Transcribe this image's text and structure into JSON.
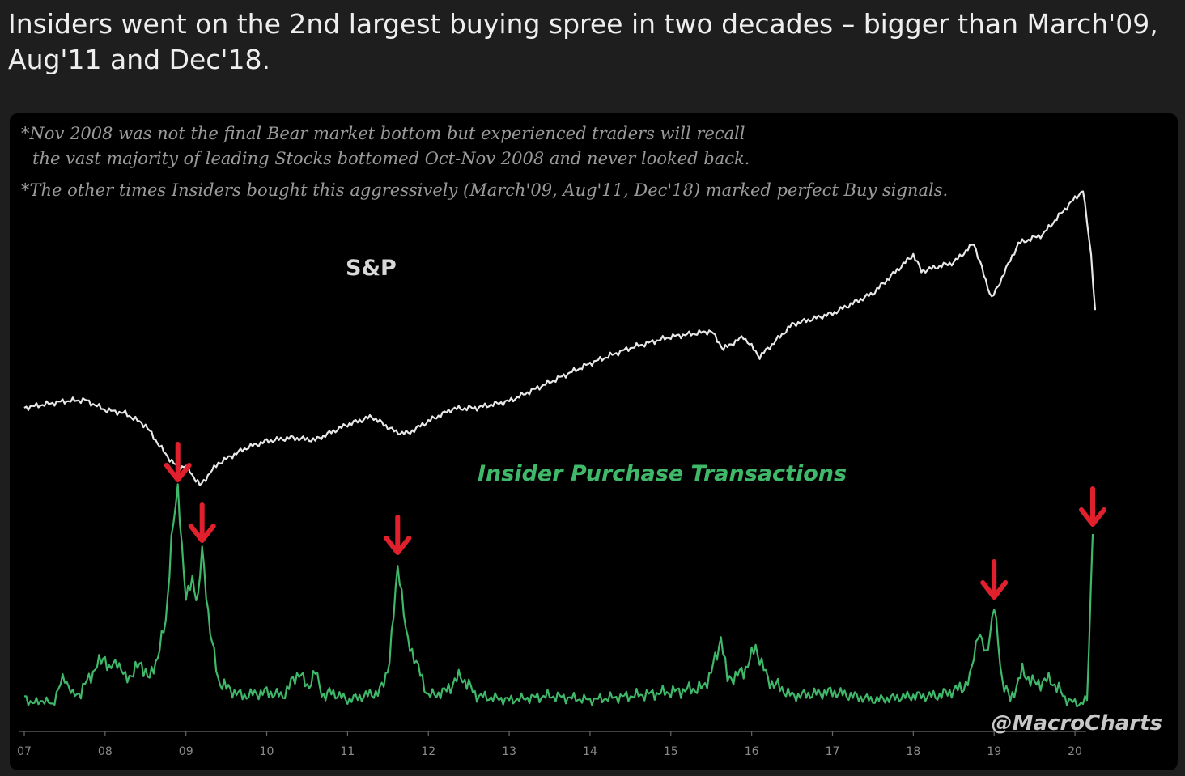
{
  "post": {
    "text": "Insiders went on the 2nd largest buying spree in two decades – bigger than March'09, Aug'11 and Dec'18."
  },
  "chart_data": {
    "type": "line",
    "notes": [
      "*Nov 2008 was not the final Bear market bottom but experienced traders will recall",
      "the vast majority of leading Stocks bottomed Oct-Nov 2008 and never looked back.",
      "*The other times Insiders bought this aggressively (March'09, Aug'11, Dec'18) marked perfect Buy signals."
    ],
    "watermark": "@MacroCharts",
    "x_ticks": [
      "07",
      "08",
      "09",
      "10",
      "11",
      "12",
      "13",
      "14",
      "15",
      "16",
      "17",
      "18",
      "19",
      "20"
    ],
    "xlim": [
      2007.0,
      2020.3
    ],
    "colors": {
      "sp": "#e8e8e8",
      "insider": "#3fb86a",
      "arrow": "#e0212d",
      "sp_label": "#d8d8d8",
      "insider_label": "#3fb86a"
    },
    "series": [
      {
        "name": "S&P",
        "x": [
          2007.0,
          2007.25,
          2007.5,
          2007.75,
          2008.0,
          2008.25,
          2008.5,
          2008.75,
          2008.9,
          2009.0,
          2009.17,
          2009.4,
          2009.75,
          2010.0,
          2010.3,
          2010.6,
          2011.0,
          2011.3,
          2011.6,
          2011.75,
          2012.0,
          2012.3,
          2012.6,
          2013.0,
          2013.5,
          2014.0,
          2014.5,
          2015.0,
          2015.5,
          2015.65,
          2015.9,
          2016.1,
          2016.5,
          2017.0,
          2017.5,
          2018.0,
          2018.1,
          2018.5,
          2018.75,
          2018.97,
          2019.3,
          2019.6,
          2019.9,
          2020.1,
          2020.2,
          2020.25
        ],
        "values": [
          1420,
          1450,
          1480,
          1490,
          1400,
          1370,
          1260,
          1000,
          880,
          900,
          720,
          920,
          1060,
          1120,
          1150,
          1130,
          1270,
          1340,
          1200,
          1190,
          1300,
          1410,
          1420,
          1480,
          1650,
          1820,
          1960,
          2060,
          2110,
          1950,
          2060,
          1880,
          2170,
          2270,
          2450,
          2800,
          2650,
          2730,
          2900,
          2400,
          2900,
          2980,
          3230,
          3380,
          2800,
          2300
        ]
      },
      {
        "name": "Insider Purchase Transactions",
        "x": [
          2007.0,
          2007.1,
          2007.2,
          2007.35,
          2007.5,
          2007.6,
          2007.7,
          2007.85,
          2008.0,
          2008.05,
          2008.15,
          2008.25,
          2008.35,
          2008.45,
          2008.55,
          2008.65,
          2008.75,
          2008.82,
          2008.9,
          2009.0,
          2009.08,
          2009.15,
          2009.2,
          2009.3,
          2009.4,
          2009.5,
          2009.7,
          2010.0,
          2010.2,
          2010.4,
          2010.5,
          2010.6,
          2010.68,
          2010.8,
          2011.0,
          2011.2,
          2011.4,
          2011.52,
          2011.62,
          2011.72,
          2011.85,
          2012.0,
          2012.2,
          2012.4,
          2012.6,
          2013.0,
          2013.5,
          2014.0,
          2014.5,
          2015.0,
          2015.4,
          2015.5,
          2015.62,
          2015.7,
          2015.9,
          2016.05,
          2016.2,
          2016.5,
          2017.0,
          2017.5,
          2018.0,
          2018.3,
          2018.6,
          2018.7,
          2018.8,
          2018.9,
          2019.0,
          2019.1,
          2019.2,
          2019.35,
          2019.5,
          2019.7,
          2019.9,
          2020.05,
          2020.15,
          2020.22
        ],
        "values": [
          4,
          2,
          3,
          2,
          9,
          4,
          5,
          10,
          14,
          10,
          13,
          8,
          10,
          12,
          8,
          14,
          22,
          42,
          55,
          28,
          32,
          28,
          40,
          20,
          8,
          6,
          4,
          5,
          4,
          10,
          6,
          10,
          4,
          5,
          3,
          4,
          5,
          12,
          37,
          20,
          12,
          4,
          5,
          9,
          4,
          3,
          4,
          3,
          4,
          5,
          6,
          10,
          18,
          8,
          10,
          16,
          8,
          4,
          5,
          3,
          4,
          4,
          6,
          8,
          20,
          14,
          26,
          8,
          3,
          10,
          7,
          8,
          3,
          2,
          3,
          44
        ]
      }
    ],
    "annotations": [
      {
        "type": "arrow",
        "series": "Insider Purchase Transactions",
        "x": 2008.9
      },
      {
        "type": "arrow",
        "series": "Insider Purchase Transactions",
        "x": 2009.2
      },
      {
        "type": "arrow",
        "series": "Insider Purchase Transactions",
        "x": 2011.62
      },
      {
        "type": "arrow",
        "series": "Insider Purchase Transactions",
        "x": 2019.0
      },
      {
        "type": "arrow",
        "series": "Insider Purchase Transactions",
        "x": 2020.22
      }
    ],
    "grid": false,
    "legend": "none"
  }
}
